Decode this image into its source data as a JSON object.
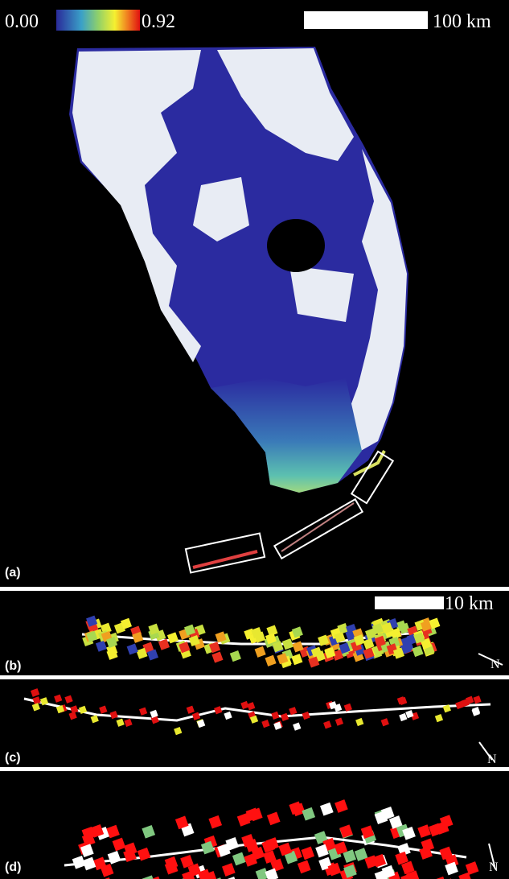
{
  "colorbar": {
    "min_label": "0.00",
    "max_label": "0.92"
  },
  "scale_bars": {
    "main": "100 km",
    "inset": "10 km"
  },
  "panels": [
    {
      "label": "(a)"
    },
    {
      "label": "(b)",
      "north": "N"
    },
    {
      "label": "(c)",
      "north": "N"
    },
    {
      "label": "(d)",
      "north": "N"
    }
  ]
}
